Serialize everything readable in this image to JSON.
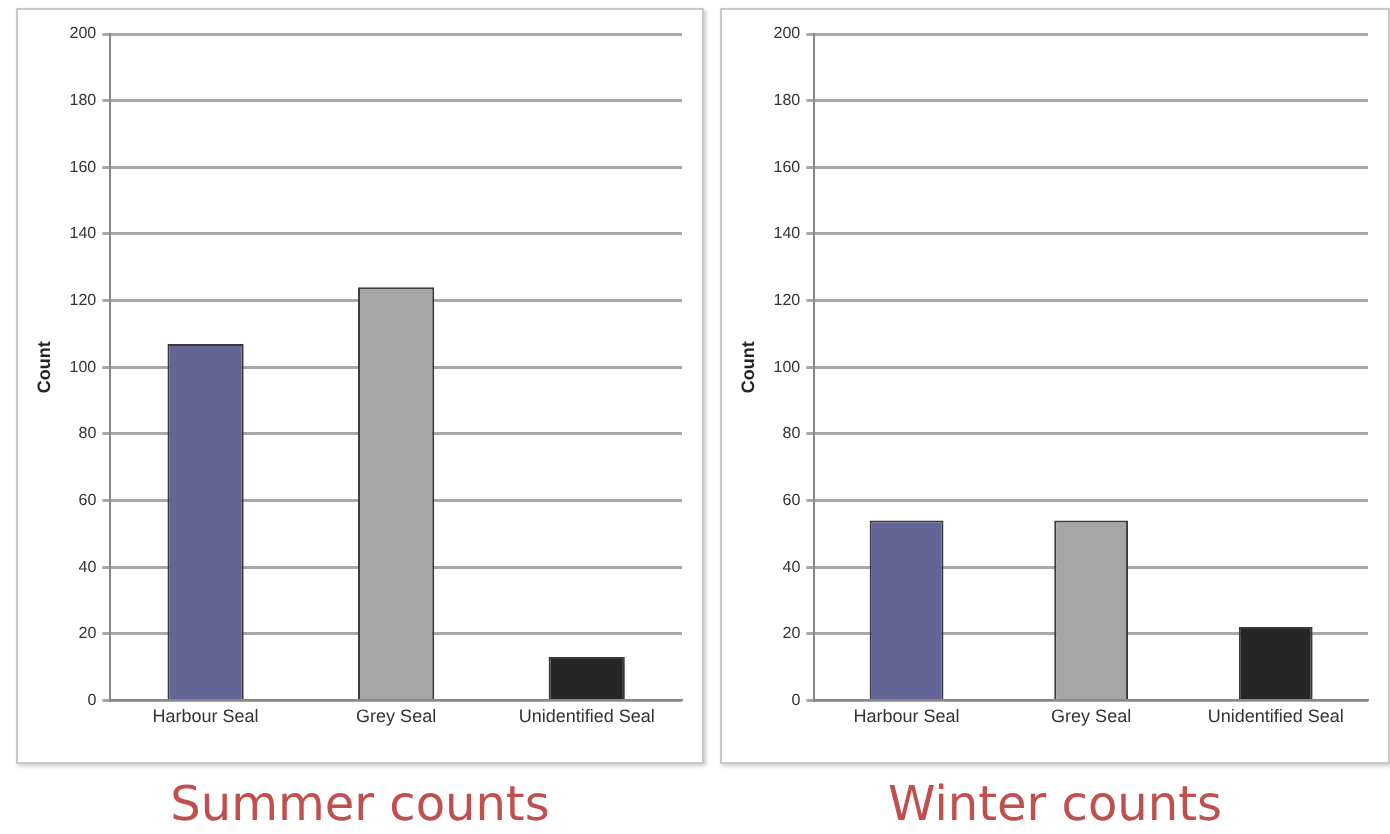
{
  "chart_data": [
    {
      "type": "bar",
      "title": "Summer counts",
      "ylabel": "Count",
      "categories": [
        "Harbour Seal",
        "Grey Seal",
        "Unidentified Seal"
      ],
      "values": [
        107,
        124,
        13
      ],
      "colors": [
        "#646496",
        "#a6a6a6",
        "#262626"
      ],
      "ylim": [
        0,
        200
      ],
      "yticks": [
        0,
        20,
        40,
        60,
        80,
        100,
        120,
        140,
        160,
        180,
        200
      ],
      "grid": "y",
      "legend": false
    },
    {
      "type": "bar",
      "title": "Winter counts",
      "ylabel": "Count",
      "categories": [
        "Harbour Seal",
        "Grey Seal",
        "Unidentified Seal"
      ],
      "values": [
        54,
        54,
        22
      ],
      "colors": [
        "#646496",
        "#a6a6a6",
        "#262626"
      ],
      "ylim": [
        0,
        200
      ],
      "yticks": [
        0,
        20,
        40,
        60,
        80,
        100,
        120,
        140,
        160,
        180,
        200
      ],
      "grid": "y",
      "legend": false
    }
  ]
}
